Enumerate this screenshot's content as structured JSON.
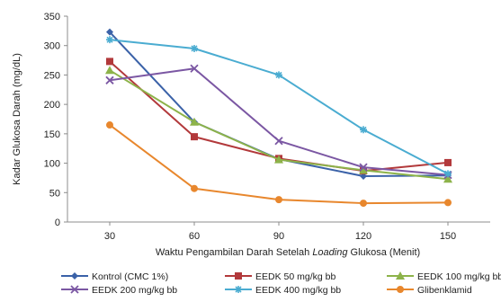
{
  "chart_data": {
    "type": "line",
    "xlabel_prefix": "Waktu Pengambilan Darah Setelah ",
    "xlabel_emphasis": "Loading",
    "xlabel_suffix": " Glukosa (Menit)",
    "ylabel": "Kadar Glukosa Darah (mg/dL)",
    "x": [
      30,
      60,
      90,
      120,
      150
    ],
    "x_tick_labels": [
      "30",
      "60",
      "90",
      "120",
      "150"
    ],
    "ylim": [
      0,
      350
    ],
    "y_ticks": [
      0,
      50,
      100,
      150,
      200,
      250,
      300,
      350
    ],
    "y_tick_labels": [
      "0",
      "50",
      "100",
      "150",
      "200",
      "250",
      "300",
      "350"
    ],
    "grid": false,
    "legend_position": "bottom",
    "series": [
      {
        "name": "Kontrol (CMC 1%)",
        "values": [
          323,
          170,
          107,
          78,
          79
        ],
        "color": "#3b62a8",
        "marker": "diamond"
      },
      {
        "name": "EEDK 50 mg/kg bb",
        "values": [
          273,
          145,
          108,
          87,
          101
        ],
        "color": "#b2393b",
        "marker": "square"
      },
      {
        "name": "EEDK 100 mg/kg bb",
        "values": [
          258,
          170,
          106,
          88,
          73
        ],
        "color": "#8db34a",
        "marker": "triangle"
      },
      {
        "name": "EEDK 200 mg/kg bb",
        "values": [
          241,
          261,
          138,
          93,
          80
        ],
        "color": "#7b57a3",
        "marker": "x"
      },
      {
        "name": "EEDK 400 mg/kg bb",
        "values": [
          310,
          295,
          250,
          157,
          82
        ],
        "color": "#4aacd1",
        "marker": "star"
      },
      {
        "name": "Glibenklamid",
        "values": [
          165,
          57,
          38,
          32,
          33
        ],
        "color": "#e8872d",
        "marker": "circle"
      }
    ]
  }
}
